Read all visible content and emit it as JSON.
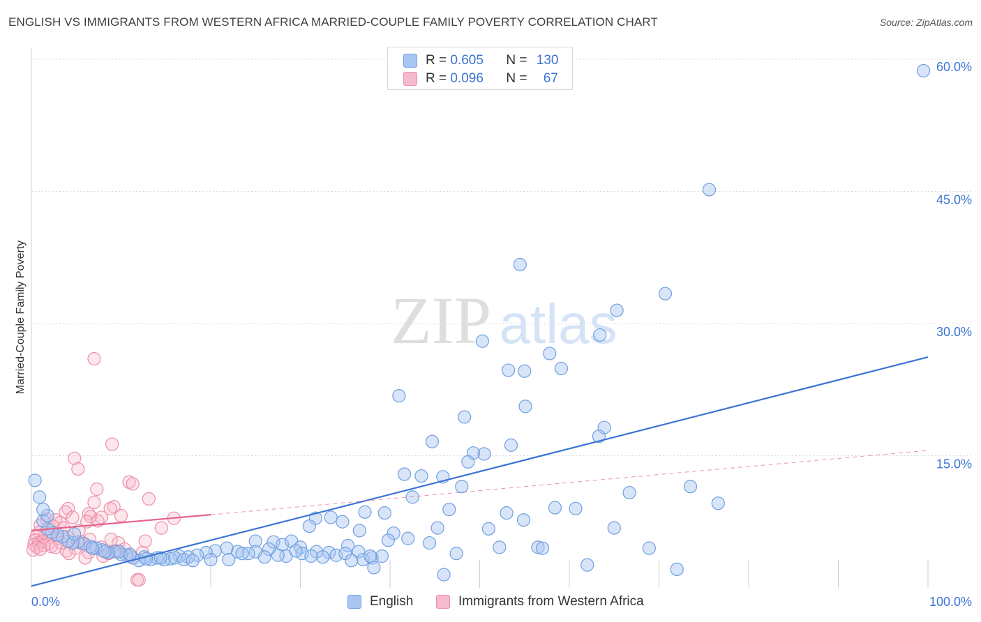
{
  "title": "ENGLISH VS IMMIGRANTS FROM WESTERN AFRICA MARRIED-COUPLE FAMILY POVERTY CORRELATION CHART",
  "source": "Source: ZipAtlas.com",
  "watermark": {
    "zip": "ZIP",
    "atlas": "atlas"
  },
  "legend": {
    "english": {
      "r_label": "R = ",
      "r": "0.605",
      "n_label": "N = ",
      "n": "130",
      "color": "#a9c6f2",
      "stroke": "#6f9fe0"
    },
    "immigrants": {
      "r_label": "R = ",
      "r": "0.096",
      "n_label": "N = ",
      "n": "67",
      "color": "#f7b9cc",
      "stroke": "#ee8ea8"
    }
  },
  "bottom_legend": {
    "english": "English",
    "immigrants": "Immigrants from Western Africa"
  },
  "chart_data": {
    "type": "scatter",
    "title": "ENGLISH VS IMMIGRANTS FROM WESTERN AFRICA MARRIED-COUPLE FAMILY POVERTY CORRELATION CHART",
    "xlabel": "",
    "ylabel": "Married-Couple Family Poverty",
    "xlim": [
      0,
      100
    ],
    "ylim": [
      0,
      60
    ],
    "x_tick_labels": [
      "0.0%",
      "100.0%"
    ],
    "y_ticks": [
      15,
      30,
      45,
      60
    ],
    "y_tick_labels": [
      "15.0%",
      "30.0%",
      "45.0%",
      "60.0%"
    ],
    "grid": true,
    "legend_position": "top-center",
    "series": [
      {
        "name": "English",
        "color": "#3b74d4",
        "fill": "#a9c6f2",
        "trend": {
          "x": [
            0,
            100
          ],
          "y": [
            0.2,
            26.2
          ],
          "style": "solid"
        },
        "points": [
          [
            99.5,
            58.7
          ],
          [
            75.6,
            45.2
          ],
          [
            54.5,
            36.7
          ],
          [
            70.7,
            33.4
          ],
          [
            65.3,
            31.5
          ],
          [
            63.4,
            28.7
          ],
          [
            50.3,
            28.0
          ],
          [
            57.8,
            26.6
          ],
          [
            53.2,
            24.7
          ],
          [
            55.0,
            24.6
          ],
          [
            59.1,
            24.9
          ],
          [
            41.0,
            21.8
          ],
          [
            55.1,
            20.6
          ],
          [
            48.3,
            19.4
          ],
          [
            63.9,
            18.2
          ],
          [
            63.3,
            17.2
          ],
          [
            44.7,
            16.6
          ],
          [
            53.5,
            16.2
          ],
          [
            50.5,
            15.2
          ],
          [
            49.3,
            15.3
          ],
          [
            48.7,
            14.3
          ],
          [
            41.6,
            12.9
          ],
          [
            43.5,
            12.7
          ],
          [
            45.9,
            12.6
          ],
          [
            48.0,
            11.5
          ],
          [
            42.5,
            10.3
          ],
          [
            73.5,
            11.5
          ],
          [
            66.7,
            10.8
          ],
          [
            76.6,
            9.6
          ],
          [
            46.6,
            8.9
          ],
          [
            58.4,
            9.1
          ],
          [
            60.7,
            9.0
          ],
          [
            37.2,
            8.6
          ],
          [
            39.4,
            8.5
          ],
          [
            53.0,
            8.5
          ],
          [
            33.4,
            8.0
          ],
          [
            31.7,
            7.9
          ],
          [
            34.7,
            7.5
          ],
          [
            54.9,
            7.7
          ],
          [
            31.0,
            7.0
          ],
          [
            45.3,
            6.8
          ],
          [
            36.6,
            6.5
          ],
          [
            40.4,
            6.2
          ],
          [
            51.0,
            6.7
          ],
          [
            65.0,
            6.8
          ],
          [
            39.8,
            5.4
          ],
          [
            44.4,
            5.1
          ],
          [
            35.3,
            4.8
          ],
          [
            52.2,
            4.6
          ],
          [
            56.5,
            4.6
          ],
          [
            68.9,
            4.5
          ],
          [
            47.4,
            3.9
          ],
          [
            27.0,
            5.2
          ],
          [
            25.0,
            5.3
          ],
          [
            26.5,
            4.4
          ],
          [
            28.0,
            4.9
          ],
          [
            29.0,
            5.3
          ],
          [
            30.0,
            4.6
          ],
          [
            31.8,
            4.1
          ],
          [
            33.2,
            4.0
          ],
          [
            34.0,
            3.7
          ],
          [
            35.0,
            3.9
          ],
          [
            36.5,
            4.1
          ],
          [
            37.0,
            3.2
          ],
          [
            38.0,
            3.4
          ],
          [
            39.1,
            3.6
          ],
          [
            32.5,
            3.5
          ],
          [
            30.2,
            3.9
          ],
          [
            28.4,
            3.6
          ],
          [
            26.0,
            3.5
          ],
          [
            25.0,
            4.1
          ],
          [
            24.2,
            3.9
          ],
          [
            23.0,
            4.1
          ],
          [
            21.8,
            4.5
          ],
          [
            20.5,
            4.2
          ],
          [
            19.5,
            4.0
          ],
          [
            18.5,
            3.7
          ],
          [
            17.5,
            3.5
          ],
          [
            16.5,
            3.6
          ],
          [
            15.5,
            3.3
          ],
          [
            14.8,
            3.2
          ],
          [
            14.0,
            3.4
          ],
          [
            13.3,
            3.2
          ],
          [
            12.6,
            3.5
          ],
          [
            12.0,
            3.1
          ],
          [
            11.3,
            3.4
          ],
          [
            10.6,
            3.7
          ],
          [
            10.0,
            3.8
          ],
          [
            9.3,
            4.1
          ],
          [
            8.6,
            4.0
          ],
          [
            7.9,
            4.3
          ],
          [
            7.2,
            4.5
          ],
          [
            6.6,
            4.7
          ],
          [
            5.9,
            5.0
          ],
          [
            5.2,
            5.2
          ],
          [
            4.6,
            5.1
          ],
          [
            4.1,
            5.3
          ],
          [
            3.5,
            5.8
          ],
          [
            2.9,
            6.0
          ],
          [
            2.3,
            6.3
          ],
          [
            1.8,
            6.7
          ],
          [
            1.3,
            7.6
          ],
          [
            1.8,
            8.2
          ],
          [
            1.3,
            8.9
          ],
          [
            0.9,
            10.3
          ],
          [
            0.4,
            12.2
          ],
          [
            4.8,
            6.1
          ],
          [
            6.8,
            4.5
          ],
          [
            8.2,
            4.1
          ],
          [
            9.8,
            4.1
          ],
          [
            11.0,
            3.8
          ],
          [
            12.8,
            3.3
          ],
          [
            14.4,
            3.4
          ],
          [
            16.0,
            3.4
          ],
          [
            17.0,
            3.2
          ],
          [
            18.0,
            3.1
          ],
          [
            20.0,
            3.2
          ],
          [
            22.0,
            3.2
          ],
          [
            23.5,
            3.9
          ],
          [
            27.5,
            3.7
          ],
          [
            29.5,
            4.2
          ],
          [
            31.2,
            3.6
          ],
          [
            35.7,
            3.1
          ],
          [
            37.8,
            3.6
          ],
          [
            42.0,
            5.6
          ],
          [
            46.0,
            1.5
          ],
          [
            62.0,
            2.6
          ],
          [
            72.0,
            2.1
          ],
          [
            57.0,
            4.5
          ],
          [
            38.2,
            2.3
          ]
        ]
      },
      {
        "name": "Immigrants from Western Africa",
        "color": "#e5638c",
        "fill": "#f7b9cc",
        "trend_solid": {
          "x": [
            0,
            20
          ],
          "y": [
            6.5,
            8.3
          ]
        },
        "trend_dashed": {
          "x": [
            20,
            100
          ],
          "y": [
            8.3,
            15.6
          ]
        },
        "points": [
          [
            7.0,
            26.0
          ],
          [
            9.0,
            16.3
          ],
          [
            4.8,
            14.7
          ],
          [
            5.2,
            13.5
          ],
          [
            10.9,
            12.0
          ],
          [
            11.3,
            11.8
          ],
          [
            7.3,
            11.2
          ],
          [
            13.1,
            10.1
          ],
          [
            7.0,
            9.7
          ],
          [
            9.2,
            9.2
          ],
          [
            4.1,
            9.0
          ],
          [
            3.8,
            8.6
          ],
          [
            8.8,
            9.0
          ],
          [
            6.4,
            8.4
          ],
          [
            6.6,
            8.1
          ],
          [
            7.8,
            8.0
          ],
          [
            10.0,
            8.2
          ],
          [
            15.9,
            7.9
          ],
          [
            1.7,
            7.8
          ],
          [
            2.7,
            7.7
          ],
          [
            3.2,
            7.4
          ],
          [
            4.6,
            8.0
          ],
          [
            6.2,
            7.5
          ],
          [
            7.4,
            7.6
          ],
          [
            2.4,
            7.0
          ],
          [
            1.0,
            7.1
          ],
          [
            3.6,
            6.8
          ],
          [
            5.3,
            6.5
          ],
          [
            14.5,
            6.8
          ],
          [
            0.9,
            6.3
          ],
          [
            2.0,
            6.2
          ],
          [
            0.6,
            5.9
          ],
          [
            1.5,
            5.8
          ],
          [
            2.9,
            5.6
          ],
          [
            4.0,
            5.8
          ],
          [
            6.5,
            5.5
          ],
          [
            8.9,
            5.5
          ],
          [
            12.7,
            5.3
          ],
          [
            0.4,
            5.4
          ],
          [
            1.2,
            5.3
          ],
          [
            0.8,
            5.1
          ],
          [
            1.9,
            5.0
          ],
          [
            3.3,
            5.1
          ],
          [
            5.6,
            5.2
          ],
          [
            9.7,
            5.1
          ],
          [
            0.3,
            4.9
          ],
          [
            1.4,
            4.8
          ],
          [
            0.6,
            4.6
          ],
          [
            2.2,
            4.7
          ],
          [
            4.9,
            4.5
          ],
          [
            7.8,
            4.6
          ],
          [
            10.4,
            4.4
          ],
          [
            12.4,
            4.0
          ],
          [
            0.2,
            4.3
          ],
          [
            1.0,
            4.4
          ],
          [
            3.9,
            4.2
          ],
          [
            6.4,
            4.0
          ],
          [
            8.0,
            3.6
          ],
          [
            11.0,
            3.6
          ],
          [
            6.0,
            3.4
          ],
          [
            8.6,
            3.9
          ],
          [
            9.5,
            4.2
          ],
          [
            4.2,
            3.9
          ],
          [
            2.7,
            4.6
          ],
          [
            5.7,
            5.0
          ],
          [
            11.8,
            0.9
          ],
          [
            12.0,
            0.9
          ]
        ]
      }
    ]
  }
}
